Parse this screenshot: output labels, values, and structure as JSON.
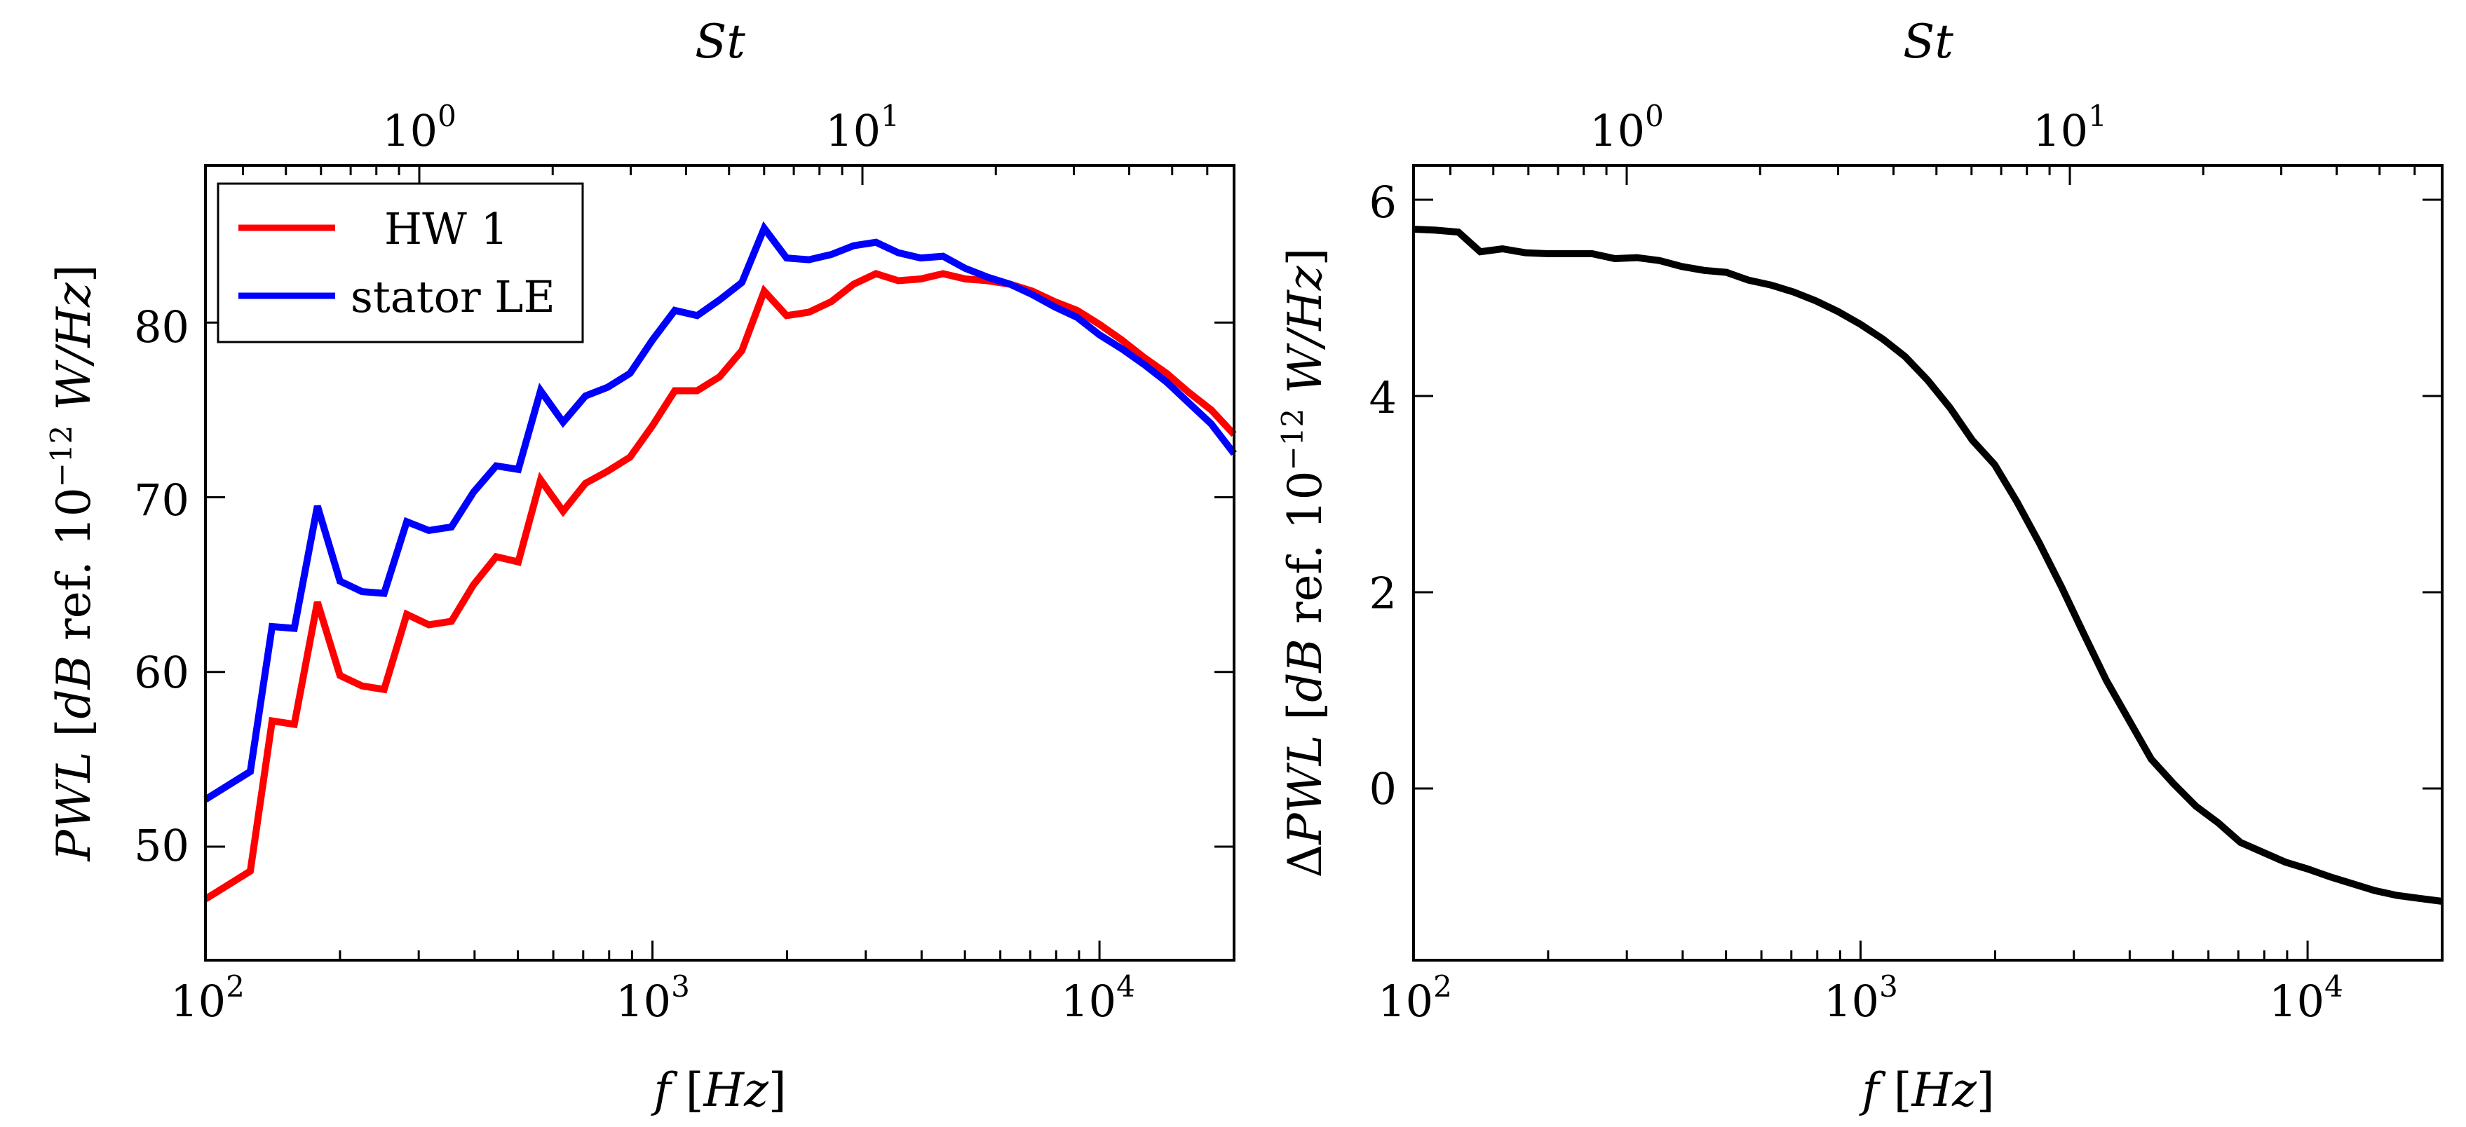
{
  "chart_data": [
    {
      "type": "line",
      "xscale": "log",
      "xlim": [
        100,
        20000
      ],
      "ylim": [
        43.5,
        89
      ],
      "xlabel": "f [Hz]",
      "ylabel": "PWL [dB ref. 10^-12 W/Hz]",
      "top_axis_label": "St",
      "x_ticks": [
        100,
        1000,
        10000
      ],
      "x_tick_labels": [
        {
          "base": "10",
          "exp": "2"
        },
        {
          "base": "10",
          "exp": "3"
        },
        {
          "base": "10",
          "exp": "4"
        }
      ],
      "top_ticks": [
        {
          "base": "10",
          "exp": "0"
        },
        {
          "base": "10",
          "exp": "1"
        }
      ],
      "y_ticks": [
        50,
        60,
        70,
        80
      ],
      "legend_position": "top-left",
      "series": [
        {
          "name": "HW 1",
          "color": "#ff0000",
          "x": [
            100,
            126,
            141,
            158,
            178,
            200,
            224,
            251,
            282,
            316,
            355,
            398,
            447,
            501,
            562,
            631,
            708,
            794,
            891,
            1000,
            1122,
            1259,
            1413,
            1585,
            1778,
            1995,
            2239,
            2512,
            2818,
            3162,
            3548,
            3981,
            4467,
            5012,
            5623,
            6310,
            7079,
            7943,
            8913,
            10000,
            11220,
            12589,
            14125,
            15849,
            17783,
            20000
          ],
          "y": [
            47.0,
            48.6,
            57.2,
            57.0,
            64.0,
            59.8,
            59.2,
            59.0,
            63.3,
            62.7,
            62.9,
            65.0,
            66.6,
            66.3,
            71.0,
            69.2,
            70.8,
            71.5,
            72.3,
            74.1,
            76.1,
            76.1,
            76.9,
            78.4,
            81.8,
            80.4,
            80.6,
            81.2,
            82.2,
            82.8,
            82.4,
            82.5,
            82.8,
            82.5,
            82.4,
            82.2,
            81.8,
            81.2,
            80.7,
            79.9,
            79.0,
            78.0,
            77.1,
            76.0,
            75.0,
            73.6
          ]
        },
        {
          "name": "stator LE",
          "color": "#0000ff",
          "x": [
            100,
            126,
            141,
            158,
            178,
            200,
            224,
            251,
            282,
            316,
            355,
            398,
            447,
            501,
            562,
            631,
            708,
            794,
            891,
            1000,
            1122,
            1259,
            1413,
            1585,
            1778,
            1995,
            2239,
            2512,
            2818,
            3162,
            3548,
            3981,
            4467,
            5012,
            5623,
            6310,
            7079,
            7943,
            8913,
            10000,
            11220,
            12589,
            14125,
            15849,
            17783,
            20000
          ],
          "y": [
            52.7,
            54.3,
            62.6,
            62.5,
            69.5,
            65.2,
            64.6,
            64.5,
            68.6,
            68.1,
            68.3,
            70.3,
            71.8,
            71.6,
            76.1,
            74.3,
            75.8,
            76.3,
            77.1,
            79.0,
            80.7,
            80.4,
            81.3,
            82.3,
            85.4,
            83.7,
            83.6,
            83.9,
            84.4,
            84.6,
            84.0,
            83.7,
            83.8,
            83.1,
            82.6,
            82.2,
            81.6,
            80.9,
            80.3,
            79.3,
            78.5,
            77.6,
            76.6,
            75.4,
            74.2,
            72.5
          ]
        }
      ]
    },
    {
      "type": "line",
      "xscale": "log",
      "xlim": [
        100,
        20000
      ],
      "ylim": [
        -1.75,
        6.35
      ],
      "xlabel": "f [Hz]",
      "ylabel": "ΔPWL [dB ref. 10^-12 W/Hz]",
      "top_axis_label": "St",
      "x_ticks": [
        100,
        1000,
        10000
      ],
      "x_tick_labels": [
        {
          "base": "10",
          "exp": "2"
        },
        {
          "base": "10",
          "exp": "3"
        },
        {
          "base": "10",
          "exp": "4"
        }
      ],
      "top_ticks": [
        {
          "base": "10",
          "exp": "0"
        },
        {
          "base": "10",
          "exp": "1"
        }
      ],
      "y_ticks": [
        0,
        2,
        4,
        6
      ],
      "series": [
        {
          "name": "ΔPWL",
          "color": "#000000",
          "x": [
            100,
            112,
            126,
            141,
            158,
            178,
            200,
            224,
            251,
            282,
            316,
            355,
            398,
            447,
            501,
            562,
            631,
            708,
            794,
            891,
            1000,
            1122,
            1259,
            1413,
            1585,
            1778,
            1995,
            2239,
            2512,
            2818,
            3162,
            3548,
            3981,
            4467,
            5012,
            5623,
            6310,
            7079,
            7943,
            8913,
            10000,
            11220,
            12589,
            14125,
            15849,
            17783,
            20000
          ],
          "y": [
            5.7,
            5.69,
            5.67,
            5.47,
            5.5,
            5.46,
            5.45,
            5.45,
            5.45,
            5.4,
            5.41,
            5.38,
            5.32,
            5.28,
            5.26,
            5.18,
            5.13,
            5.06,
            4.97,
            4.86,
            4.73,
            4.58,
            4.4,
            4.16,
            3.88,
            3.55,
            3.3,
            2.92,
            2.5,
            2.05,
            1.57,
            1.1,
            0.7,
            0.3,
            0.05,
            -0.18,
            -0.35,
            -0.55,
            -0.65,
            -0.75,
            -0.82,
            -0.9,
            -0.97,
            -1.04,
            -1.09,
            -1.12,
            -1.15
          ]
        }
      ]
    }
  ],
  "legend": {
    "entries": [
      "HW 1",
      "stator LE"
    ],
    "colors": [
      "#ff0000",
      "#0000ff"
    ]
  },
  "labels": {
    "left_ylabel_italic_1": "PWL",
    "left_ylabel_text_1": " [",
    "left_ylabel_italic_2": "dB",
    "left_ylabel_text_2": " ref. 10",
    "left_ylabel_exp": "−12",
    "left_ylabel_italic_3": " W/Hz",
    "left_ylabel_text_3": "]",
    "right_ylabel_delta": "Δ",
    "right_ylabel_italic_1": "PWL",
    "right_ylabel_text_1": " [",
    "right_ylabel_italic_2": "dB",
    "right_ylabel_text_2": " ref. 10",
    "right_ylabel_exp": "−12",
    "right_ylabel_italic_3": " W/Hz",
    "right_ylabel_text_3": "]",
    "xlabel_f": "f",
    "xlabel_open": " [",
    "xlabel_hz": "Hz",
    "xlabel_close": "]",
    "st_label": "St"
  }
}
